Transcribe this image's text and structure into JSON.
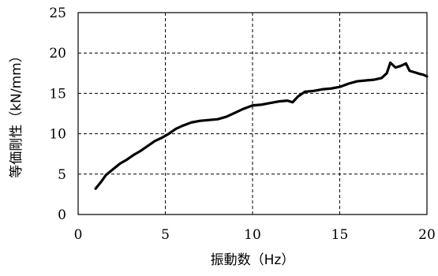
{
  "chart_data": {
    "type": "line",
    "xlabel": "振動数（Hz）",
    "ylabel": "等価剛性（kN/mm）",
    "xlim": [
      0,
      20
    ],
    "ylim": [
      0,
      25
    ],
    "x_ticks": [
      "0",
      "5",
      "10",
      "15",
      "20"
    ],
    "y_ticks": [
      "0",
      "5",
      "10",
      "15",
      "20",
      "25"
    ],
    "grid": "dashed",
    "legend": "none",
    "line_color": "#000000",
    "series": [
      {
        "x": [
          1.0,
          1.3,
          1.6,
          2.0,
          2.4,
          2.8,
          3.2,
          3.6,
          4.0,
          4.4,
          4.8,
          5.2,
          5.6,
          6.0,
          6.5,
          7.0,
          7.5,
          8.0,
          8.5,
          9.0,
          9.5,
          10.0,
          10.5,
          11.0,
          11.5,
          12.0,
          12.3,
          12.6,
          13.0,
          13.5,
          14.0,
          14.5,
          15.0,
          15.5,
          16.0,
          16.5,
          17.0,
          17.4,
          17.7,
          17.9,
          18.2,
          18.5,
          18.8,
          19.0,
          19.3,
          19.6,
          19.8,
          20.0
        ],
        "y": [
          3.2,
          4.0,
          4.9,
          5.6,
          6.3,
          6.8,
          7.4,
          7.9,
          8.5,
          9.1,
          9.5,
          10.0,
          10.6,
          11.0,
          11.4,
          11.6,
          11.7,
          11.8,
          12.1,
          12.6,
          13.1,
          13.5,
          13.6,
          13.8,
          14.0,
          14.1,
          13.9,
          14.6,
          15.2,
          15.3,
          15.5,
          15.6,
          15.8,
          16.2,
          16.5,
          16.6,
          16.7,
          16.9,
          17.5,
          18.8,
          18.2,
          18.4,
          18.7,
          17.8,
          17.6,
          17.4,
          17.3,
          17.1
        ]
      }
    ]
  }
}
